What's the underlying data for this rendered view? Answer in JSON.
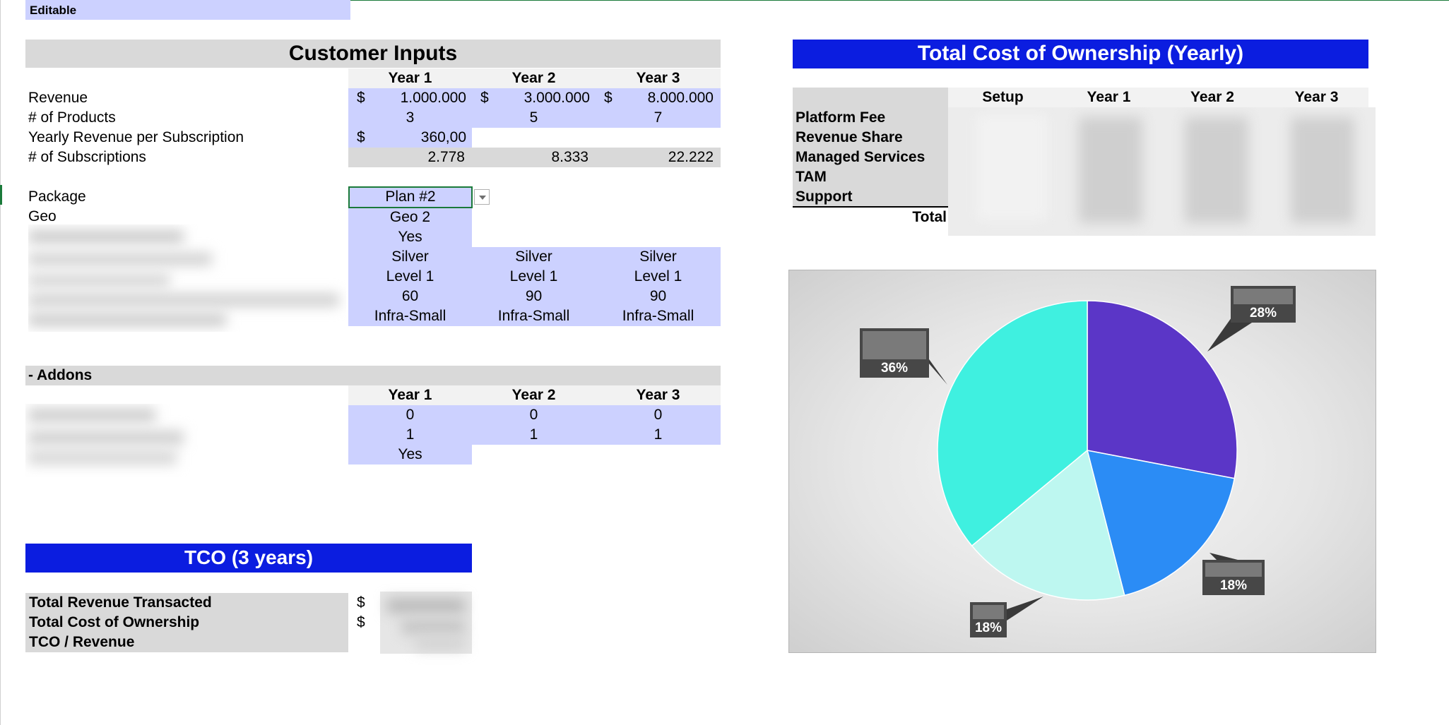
{
  "legend": {
    "editable_label": "Editable"
  },
  "customer_inputs": {
    "title": "Customer Inputs",
    "years": [
      "Year 1",
      "Year 2",
      "Year 3"
    ],
    "currency": "$",
    "revenue": {
      "label": "Revenue",
      "values": [
        "1.000.000",
        "3.000.000",
        "8.000.000"
      ]
    },
    "products": {
      "label": "# of Products",
      "values": [
        "3",
        "5",
        "7"
      ]
    },
    "yearly_rev": {
      "label": "Yearly Revenue per Subscription",
      "value": "360,00"
    },
    "subscriptions": {
      "label": "# of Subscriptions",
      "values": [
        "2.778",
        "8.333",
        "22.222"
      ]
    },
    "package": {
      "label": "Package",
      "value": "Plan #2"
    },
    "geo": {
      "label": "Geo",
      "value": "Geo 2"
    },
    "extra": {
      "flag": "Yes",
      "tier": [
        "Silver",
        "Silver",
        "Silver"
      ],
      "level": [
        "Level 1",
        "Level 1",
        "Level 1"
      ],
      "count": [
        "60",
        "90",
        "90"
      ],
      "infra": [
        "Infra-Small",
        "Infra-Small",
        "Infra-Small"
      ]
    }
  },
  "addons": {
    "title": "- Addons",
    "years": [
      "Year 1",
      "Year 2",
      "Year 3"
    ],
    "row1": [
      "0",
      "0",
      "0"
    ],
    "row2": [
      "1",
      "1",
      "1"
    ],
    "row3": "Yes"
  },
  "tco": {
    "title": "TCO (3 years)",
    "rows": [
      "Total Revenue Transacted",
      "Total Cost of Ownership",
      "TCO / Revenue"
    ],
    "currency": "$"
  },
  "yearly": {
    "title": "Total Cost of Ownership (Yearly)",
    "columns": [
      "Setup",
      "Year 1",
      "Year 2",
      "Year 3"
    ],
    "rows": [
      "Platform Fee",
      "Revenue Share",
      "Managed Services",
      "TAM",
      "Support"
    ],
    "total_label": "Total"
  },
  "chart_data": {
    "type": "pie",
    "values": [
      28,
      18,
      18,
      36
    ],
    "labels": [
      "28%",
      "18%",
      "18%",
      "36%"
    ],
    "colors": [
      "#5b36c7",
      "#2b8cf5",
      "#bdf7f0",
      "#3ff0e0"
    ]
  }
}
